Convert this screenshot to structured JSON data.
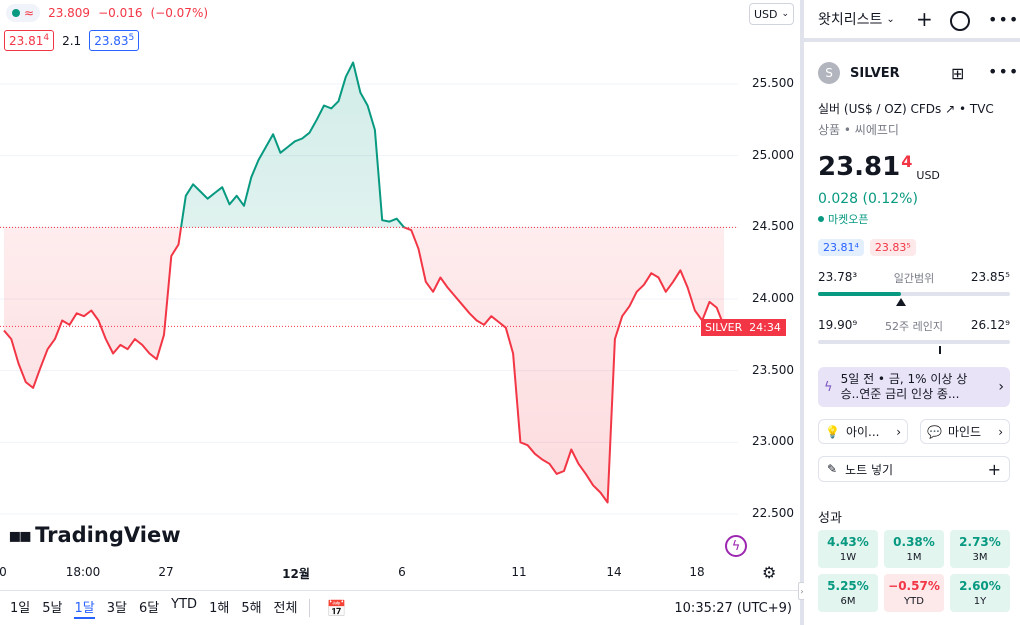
{
  "legend": {
    "last": "23.809",
    "change": "−0.016",
    "change_pct": "(−0.07%)"
  },
  "bidask": {
    "bid": "23.81",
    "bid_sup": "4",
    "spread": "2.1",
    "ask": "23.83",
    "ask_sup": "5"
  },
  "currency_btn": "USD",
  "price_tag": {
    "symbol": "SILVER",
    "countdown": "24:34"
  },
  "brand": "TradingView",
  "bottom_bar": {
    "ranges": [
      "1일",
      "5날",
      "1달",
      "3달",
      "6달",
      "YTD",
      "1해",
      "5해",
      "전체"
    ],
    "active_range": "1달",
    "clock": "10:35:27 (UTC+9)"
  },
  "chart_data": {
    "type": "area",
    "title": "",
    "baseline": 24.5,
    "ylim": [
      22.3,
      25.95
    ],
    "yticks": [
      "25.500",
      "25.000",
      "24.500",
      "24.000",
      "23.500",
      "23.000",
      "22.500"
    ],
    "ytick_values": [
      25.5,
      25.0,
      24.5,
      24.0,
      23.5,
      23.0,
      22.5
    ],
    "xticks": [
      "0",
      "18:00",
      "27",
      "12월",
      "6",
      "11",
      "14",
      "18"
    ],
    "last_price": 23.809,
    "colors": {
      "up": "#089981",
      "down": "#f23645"
    },
    "series": [
      {
        "values": [
          23.78,
          23.72,
          23.55,
          23.42,
          23.38,
          23.52,
          23.65,
          23.72,
          23.85,
          23.82,
          23.9,
          23.88,
          23.92,
          23.85,
          23.72,
          23.62,
          23.68,
          23.65,
          23.72,
          23.68,
          23.62,
          23.58,
          23.75,
          24.3,
          24.38,
          24.72,
          24.8,
          24.75,
          24.7,
          24.74,
          24.78,
          24.66,
          24.72,
          24.65,
          24.85,
          24.97,
          25.06,
          25.15,
          25.02,
          25.06,
          25.1,
          25.12,
          25.16,
          25.25,
          25.35,
          25.33,
          25.38,
          25.55,
          25.65,
          25.44,
          25.35,
          25.18,
          24.55,
          24.54,
          24.56,
          24.5,
          24.48,
          24.35,
          24.12,
          24.05,
          24.15,
          24.08,
          24.02,
          23.96,
          23.9,
          23.85,
          23.82,
          23.88,
          23.84,
          23.8,
          23.62,
          23.0,
          22.98,
          22.92,
          22.88,
          22.85,
          22.78,
          22.8,
          22.95,
          22.85,
          22.78,
          22.7,
          22.65,
          22.58,
          23.72,
          23.88,
          23.95,
          24.05,
          24.1,
          24.18,
          24.15,
          24.05,
          24.12,
          24.2,
          24.08,
          23.92,
          23.85,
          23.98,
          23.94,
          23.81
        ]
      }
    ]
  },
  "watchlist": {
    "title": "왓치리스트"
  },
  "symbol": {
    "logo": "S",
    "name": "SILVER",
    "description": "실버 (US$ / OZ) CFDs",
    "exchange": "TVC",
    "category": "상품 • 씨에프디",
    "price_main": "23.81",
    "price_sup": "4",
    "price_currency": "USD",
    "change": "0.028 (0.12%)",
    "market_status": "마켓오픈",
    "bid_chip": "23.81⁴",
    "ask_chip": "23.83⁵"
  },
  "day_range": {
    "low": "23.78³",
    "label": "일간범위",
    "high": "23.85⁵",
    "fill_fraction": 0.43,
    "marker_fraction": 0.43
  },
  "week52_range": {
    "low": "19.90⁹",
    "label": "52주 레인지",
    "high": "26.12⁹",
    "marker_fraction": 0.63
  },
  "news": {
    "text_line1": "5일 전 • 금, 1% 이상 상",
    "text_line2": "승..연준 금리 인상 종..."
  },
  "pills": {
    "ideas": "아이...",
    "minds": "마인드"
  },
  "note": {
    "label": "노트 넣기"
  },
  "performance": {
    "title": "성과",
    "items": [
      {
        "value": "4.43%",
        "period": "1W",
        "sign": "pos"
      },
      {
        "value": "0.38%",
        "period": "1M",
        "sign": "pos"
      },
      {
        "value": "2.73%",
        "period": "3M",
        "sign": "pos"
      },
      {
        "value": "5.25%",
        "period": "6M",
        "sign": "pos"
      },
      {
        "value": "−0.57%",
        "period": "YTD",
        "sign": "neg"
      },
      {
        "value": "2.60%",
        "period": "1Y",
        "sign": "pos"
      }
    ]
  }
}
